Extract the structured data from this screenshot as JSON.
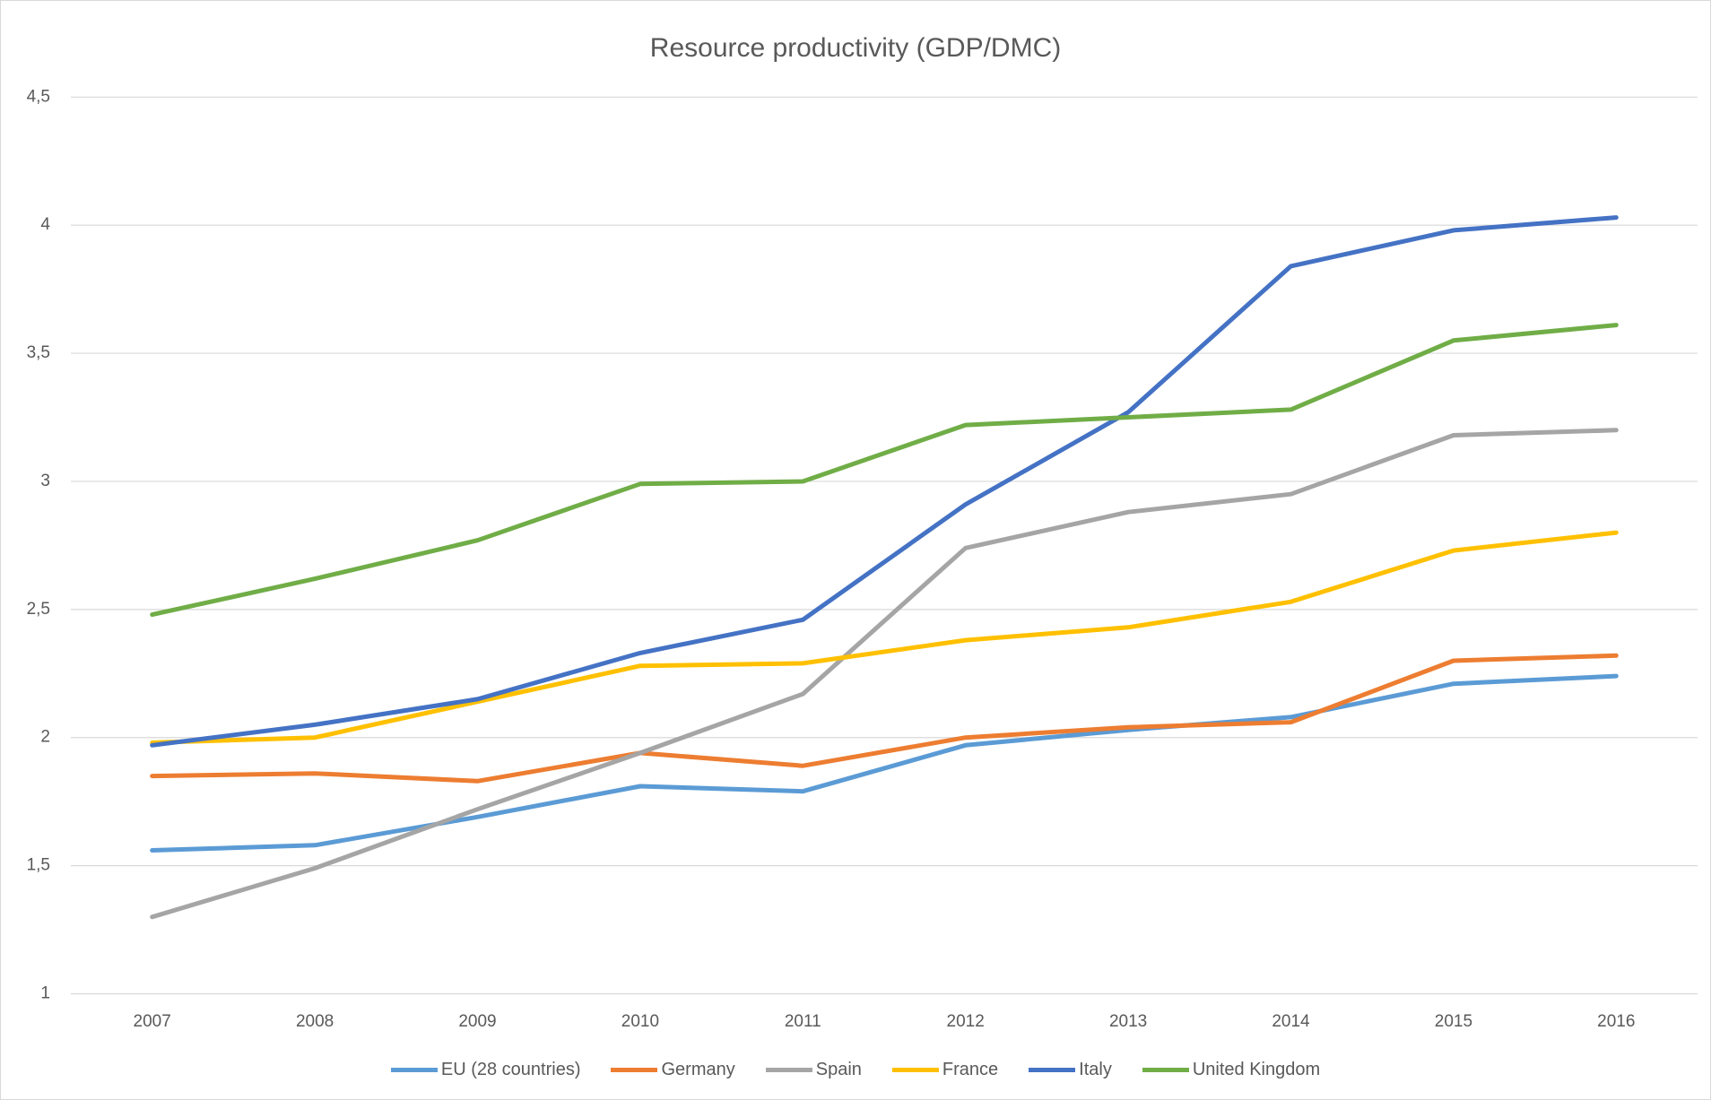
{
  "chart_data": {
    "type": "line",
    "title": "Resource productivity (GDP/DMC)",
    "categories": [
      "2007",
      "2008",
      "2009",
      "2010",
      "2011",
      "2012",
      "2013",
      "2014",
      "2015",
      "2016"
    ],
    "series": [
      {
        "name": "EU (28 countries)",
        "color": "#5b9bd5",
        "values": [
          1.56,
          1.58,
          1.69,
          1.81,
          1.79,
          1.97,
          2.03,
          2.08,
          2.21,
          2.24
        ]
      },
      {
        "name": "Germany",
        "color": "#ed7d31",
        "values": [
          1.85,
          1.86,
          1.83,
          1.94,
          1.89,
          2.0,
          2.04,
          2.06,
          2.3,
          2.32
        ]
      },
      {
        "name": "Spain",
        "color": "#a5a5a5",
        "values": [
          1.3,
          1.49,
          1.72,
          1.94,
          2.17,
          2.74,
          2.88,
          2.95,
          3.18,
          3.2
        ]
      },
      {
        "name": "France",
        "color": "#ffc000",
        "values": [
          1.98,
          2.0,
          2.14,
          2.28,
          2.29,
          2.38,
          2.43,
          2.53,
          2.73,
          2.8
        ]
      },
      {
        "name": "Italy",
        "color": "#4472c4",
        "values": [
          1.97,
          2.05,
          2.15,
          2.33,
          2.46,
          2.91,
          3.27,
          3.84,
          3.98,
          4.03
        ]
      },
      {
        "name": "United Kingdom",
        "color": "#70ad47",
        "values": [
          2.48,
          2.62,
          2.77,
          2.99,
          3.0,
          3.22,
          3.25,
          3.28,
          3.55,
          3.61
        ]
      }
    ],
    "ylim": [
      1,
      4.5
    ],
    "yticks": [
      1,
      {
        "value": 1.5,
        "label": "1,5"
      },
      2,
      {
        "value": 2.5,
        "label": "2,5"
      },
      3,
      {
        "value": 3.5,
        "label": "3,5"
      },
      4,
      {
        "value": 4.5,
        "label": "4,5"
      }
    ],
    "grid": true,
    "legend": "bottom"
  }
}
